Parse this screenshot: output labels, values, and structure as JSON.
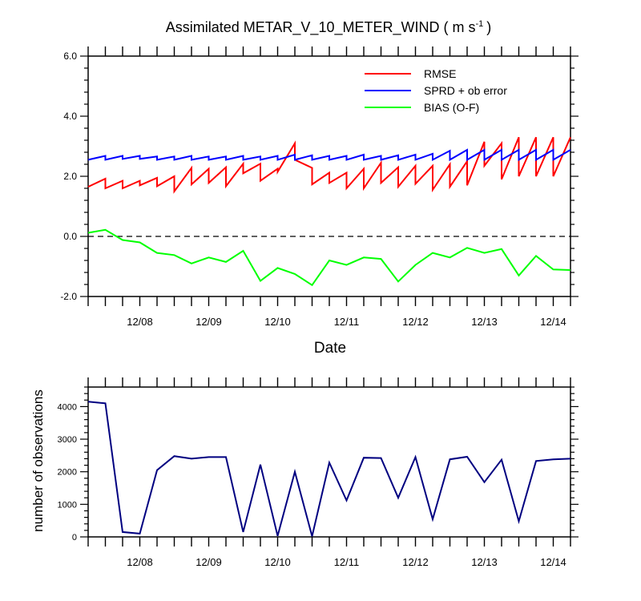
{
  "chart_data": [
    {
      "type": "line",
      "title": "Assimilated METAR_V_10_METER_WIND",
      "title_units": "( m s",
      "title_units_sup": "-1",
      "title_units_close": ")",
      "xlabel": "Date",
      "ylabel": "",
      "ylim": [
        -2.0,
        6.0
      ],
      "yticks": [
        -2.0,
        0.0,
        2.0,
        4.0,
        6.0
      ],
      "ytick_labels": [
        "-2.0",
        "0.0",
        "2.0",
        "4.0",
        "6.0"
      ],
      "xlim": [
        0,
        28
      ],
      "xticks": [
        3,
        7,
        11,
        15,
        19,
        23,
        27
      ],
      "xtick_labels": [
        "12/08",
        "12/09",
        "12/10",
        "12/11",
        "12/12",
        "12/13",
        "12/14"
      ],
      "zero_line": true,
      "legend_position": "top-right",
      "series": [
        {
          "name": "RMSE",
          "color": "#ff0000",
          "x": [
            0,
            1,
            1,
            2,
            2,
            3,
            3,
            4,
            4,
            5,
            5,
            6,
            6,
            7,
            7,
            8,
            8,
            9,
            9,
            10,
            10,
            11,
            11,
            12,
            12,
            13,
            13,
            14,
            14,
            15,
            15,
            16,
            16,
            17,
            17,
            18,
            18,
            19,
            19,
            20,
            20,
            21,
            21,
            22,
            22,
            23,
            23,
            24,
            24,
            25,
            25,
            26,
            26,
            27,
            27,
            28
          ],
          "y": [
            1.65,
            1.92,
            1.6,
            1.85,
            1.6,
            1.85,
            1.7,
            1.95,
            1.67,
            2.0,
            1.5,
            2.28,
            1.73,
            2.25,
            1.78,
            2.3,
            1.67,
            2.42,
            2.1,
            2.42,
            1.85,
            2.25,
            2.15,
            3.1,
            2.55,
            2.28,
            1.73,
            2.12,
            1.78,
            2.12,
            1.6,
            2.25,
            1.6,
            2.45,
            1.78,
            2.3,
            1.65,
            2.35,
            1.75,
            2.35,
            1.55,
            2.4,
            1.65,
            2.5,
            1.7,
            3.15,
            2.35,
            3.1,
            1.9,
            3.3,
            2.0,
            3.3,
            2.0,
            3.3,
            2.0,
            3.3
          ]
        },
        {
          "name": "SPRD + ob error",
          "color": "#0000ff",
          "x": [
            0,
            1,
            1,
            2,
            2,
            3,
            3,
            4,
            4,
            5,
            5,
            6,
            6,
            7,
            7,
            8,
            8,
            9,
            9,
            10,
            10,
            11,
            11,
            12,
            12,
            13,
            13,
            14,
            14,
            15,
            15,
            16,
            16,
            17,
            17,
            18,
            18,
            19,
            19,
            20,
            20,
            21,
            21,
            22,
            22,
            23,
            23,
            24,
            24,
            25,
            25,
            26,
            26,
            27,
            27,
            28
          ],
          "y": [
            2.55,
            2.68,
            2.55,
            2.68,
            2.58,
            2.68,
            2.58,
            2.66,
            2.55,
            2.66,
            2.55,
            2.68,
            2.55,
            2.66,
            2.55,
            2.66,
            2.55,
            2.68,
            2.55,
            2.66,
            2.55,
            2.68,
            2.55,
            2.72,
            2.55,
            2.7,
            2.55,
            2.68,
            2.55,
            2.68,
            2.55,
            2.72,
            2.55,
            2.68,
            2.55,
            2.7,
            2.55,
            2.72,
            2.55,
            2.75,
            2.55,
            2.85,
            2.55,
            2.88,
            2.55,
            2.88,
            2.55,
            2.88,
            2.55,
            2.88,
            2.55,
            2.88,
            2.55,
            2.88,
            2.55,
            2.88
          ]
        },
        {
          "name": "BIAS (O-F)",
          "color": "#00ff00",
          "x": [
            0,
            1,
            2,
            3,
            4,
            5,
            6,
            7,
            8,
            9,
            10,
            11,
            12,
            13,
            14,
            15,
            16,
            17,
            18,
            19,
            20,
            21,
            22,
            23,
            24,
            25,
            26,
            27,
            28
          ],
          "y": [
            0.12,
            0.22,
            -0.12,
            -0.2,
            -0.55,
            -0.62,
            -0.9,
            -0.7,
            -0.85,
            -0.48,
            -1.48,
            -1.05,
            -1.25,
            -1.62,
            -0.8,
            -0.95,
            -0.7,
            -0.75,
            -1.5,
            -0.95,
            -0.55,
            -0.7,
            -0.38,
            -0.55,
            -0.42,
            -1.3,
            -0.65,
            -1.1,
            -1.12
          ]
        }
      ]
    },
    {
      "type": "line",
      "title": "",
      "xlabel": "",
      "ylabel": "number of observations",
      "ylim": [
        0,
        4600
      ],
      "yticks": [
        0,
        1000,
        2000,
        3000,
        4000
      ],
      "ytick_labels": [
        "0",
        "1000",
        "2000",
        "3000",
        "4000"
      ],
      "xlim": [
        0,
        28
      ],
      "xticks": [
        3,
        7,
        11,
        15,
        19,
        23,
        27
      ],
      "xtick_labels": [
        "12/08",
        "12/09",
        "12/10",
        "12/11",
        "12/12",
        "12/13",
        "12/14"
      ],
      "series": [
        {
          "name": "observations",
          "color": "#000080",
          "x": [
            0,
            1,
            2,
            3,
            4,
            5,
            6,
            7,
            8,
            9,
            10,
            11,
            12,
            13,
            14,
            15,
            16,
            17,
            18,
            19,
            20,
            21,
            22,
            23,
            24,
            25,
            26,
            27,
            28
          ],
          "y": [
            4150,
            4100,
            150,
            100,
            2050,
            2480,
            2400,
            2450,
            2450,
            150,
            2220,
            30,
            2000,
            20,
            2280,
            1120,
            2430,
            2420,
            1200,
            2450,
            540,
            2380,
            2460,
            1680,
            2370,
            480,
            2330,
            2380,
            2400
          ]
        }
      ]
    }
  ]
}
